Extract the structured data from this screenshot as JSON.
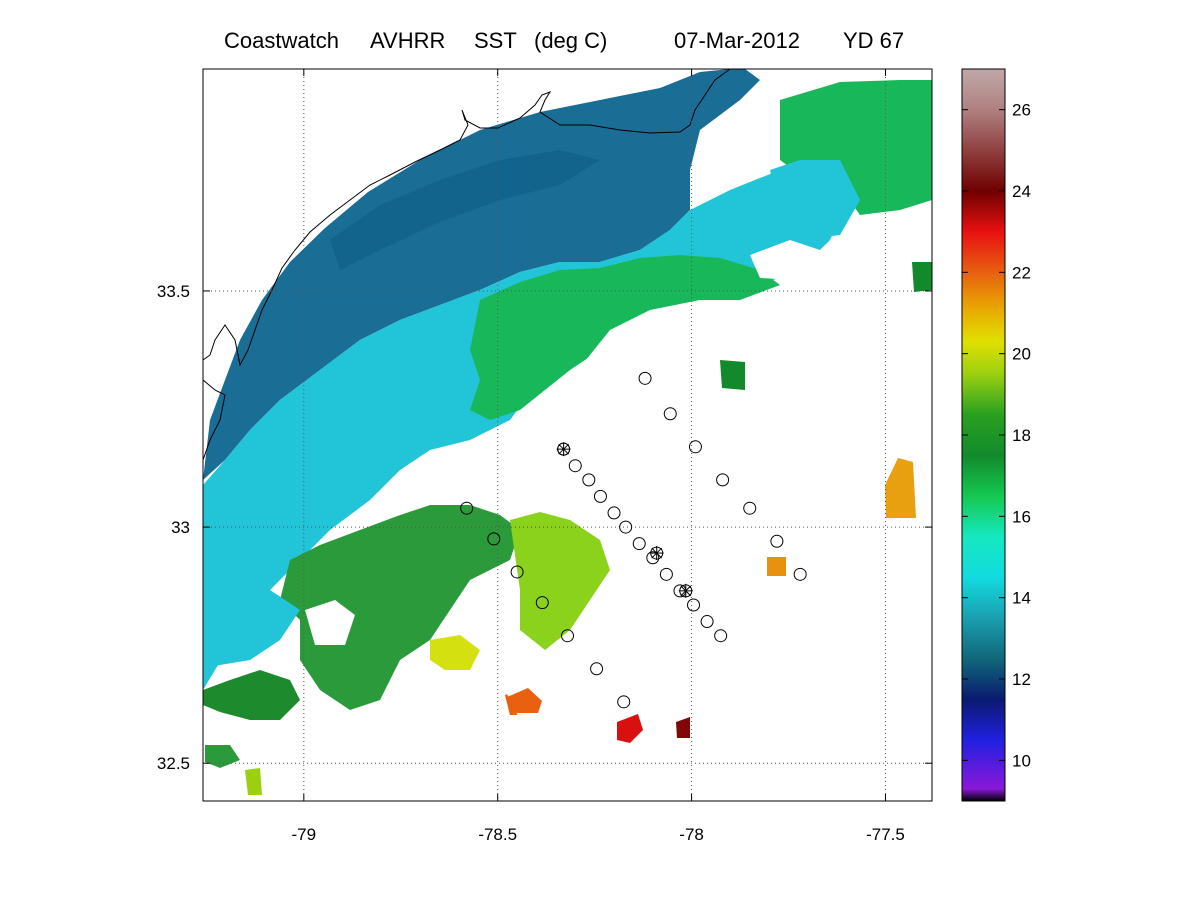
{
  "title": {
    "source": "Coastwatch",
    "sensor": "AVHRR",
    "product": "SST",
    "units": "(deg C)",
    "date": "07-Mar-2012",
    "yearday": "YD 67"
  },
  "map": {
    "lon_range": [
      -79.26,
      -77.38
    ],
    "lat_range": [
      32.42,
      33.97
    ],
    "x_ticks": [
      {
        "value": -79,
        "label": "-79"
      },
      {
        "value": -78.5,
        "label": "-78.5"
      },
      {
        "value": -78,
        "label": "-78"
      },
      {
        "value": -77.5,
        "label": "-77.5"
      }
    ],
    "y_ticks": [
      {
        "value": 33.5,
        "label": "33.5"
      },
      {
        "value": 33,
        "label": "33"
      },
      {
        "value": 32.5,
        "label": "32.5"
      }
    ],
    "grid": "dotted",
    "layers": [
      "sst-field",
      "coastline",
      "station-markers"
    ],
    "colors": {
      "cold_shelf": "#1a6e96",
      "mid_shelf": "#22c4d8",
      "warm_front": "#18b85a",
      "gulf_stream_edge": "#8ad21c",
      "cloud_mask": "#ffffff"
    }
  },
  "colorbar": {
    "range": [
      9,
      27
    ],
    "tick_values": [
      10,
      12,
      14,
      16,
      18,
      20,
      22,
      24,
      26
    ],
    "tick_labels": [
      "10",
      "12",
      "14",
      "16",
      "18",
      "20",
      "22",
      "24",
      "26"
    ],
    "stops": [
      {
        "v": 9,
        "c": "#000000"
      },
      {
        "v": 9.3,
        "c": "#8a18d8"
      },
      {
        "v": 10.5,
        "c": "#2020e0"
      },
      {
        "v": 11.5,
        "c": "#0a1a70"
      },
      {
        "v": 12.5,
        "c": "#10687a"
      },
      {
        "v": 13.5,
        "c": "#1a9fb0"
      },
      {
        "v": 14.5,
        "c": "#12dbe0"
      },
      {
        "v": 15.5,
        "c": "#15e8c0"
      },
      {
        "v": 16.5,
        "c": "#15c850"
      },
      {
        "v": 17.5,
        "c": "#128a2c"
      },
      {
        "v": 18.5,
        "c": "#2aa020"
      },
      {
        "v": 19.5,
        "c": "#9ad010"
      },
      {
        "v": 20.3,
        "c": "#e0e000"
      },
      {
        "v": 21,
        "c": "#e8b000"
      },
      {
        "v": 22,
        "c": "#e86010"
      },
      {
        "v": 23,
        "c": "#e81010"
      },
      {
        "v": 24,
        "c": "#700000"
      },
      {
        "v": 25,
        "c": "#904040"
      },
      {
        "v": 26,
        "c": "#b08080"
      },
      {
        "v": 27,
        "c": "#c0a8a8"
      }
    ]
  },
  "stations": {
    "circles": [
      [
        -78.12,
        33.315
      ],
      [
        -78.055,
        33.24
      ],
      [
        -77.99,
        33.17
      ],
      [
        -77.92,
        33.1
      ],
      [
        -77.85,
        33.04
      ],
      [
        -77.78,
        32.97
      ],
      [
        -77.72,
        32.9
      ],
      [
        -78.33,
        33.165
      ],
      [
        -78.3,
        33.13
      ],
      [
        -78.265,
        33.1
      ],
      [
        -78.235,
        33.065
      ],
      [
        -78.2,
        33.03
      ],
      [
        -78.17,
        33.0
      ],
      [
        -78.135,
        32.965
      ],
      [
        -78.1,
        32.935
      ],
      [
        -78.065,
        32.9
      ],
      [
        -78.03,
        32.865
      ],
      [
        -77.995,
        32.835
      ],
      [
        -77.96,
        32.8
      ],
      [
        -77.925,
        32.77
      ],
      [
        -78.58,
        33.04
      ],
      [
        -78.51,
        32.975
      ],
      [
        -78.45,
        32.905
      ],
      [
        -78.385,
        32.84
      ],
      [
        -78.32,
        32.77
      ],
      [
        -78.245,
        32.7
      ],
      [
        -78.175,
        32.63
      ]
    ],
    "starred": [
      [
        -78.33,
        33.165
      ],
      [
        -78.09,
        32.945
      ],
      [
        -78.015,
        32.865
      ]
    ]
  }
}
